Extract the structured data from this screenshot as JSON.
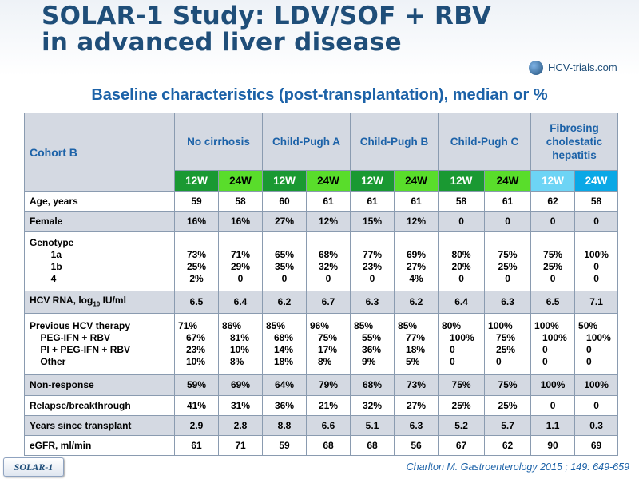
{
  "slide": {
    "title_line1": "SOLAR-1 Study: LDV/SOF + RBV",
    "title_line2": "in advanced liver disease",
    "logo_text": "HCV-trials.com",
    "subtitle": "Baseline characteristics (post-transplantation), median or %",
    "badge": "SOLAR-1",
    "citation": "Charlton M. Gastroenterology 2015 ; 149: 649-659"
  },
  "table": {
    "cohort_label": "Cohort B",
    "groups": [
      "No cirrhosis",
      "Child-Pugh  A",
      "Child-Pugh  B",
      "Child-Pugh  C",
      "Fibrosing\ncholestatic\nhepatitis"
    ],
    "weeks": [
      "12W",
      "24W",
      "12W",
      "24W",
      "12W",
      "24W",
      "12W",
      "24W",
      "12W",
      "24W"
    ],
    "rows": [
      {
        "label": "Age, years",
        "values": [
          "59",
          "58",
          "60",
          "61",
          "61",
          "61",
          "58",
          "61",
          "62",
          "58"
        ]
      },
      {
        "label": "Female",
        "values": [
          "16%",
          "16%",
          "27%",
          "12%",
          "15%",
          "12%",
          "0",
          "0",
          "0",
          "0"
        ]
      },
      {
        "label": "Genotype\n        1a\n        1b\n        4",
        "values": [
          "\n73%\n25%\n2%",
          "\n71%\n29%\n0",
          "\n65%\n35%\n0",
          "\n68%\n32%\n0",
          "\n77%\n23%\n0",
          "\n69%\n27%\n4%",
          "\n80%\n20%\n0",
          "\n75%\n25%\n0",
          "\n75%\n25%\n0",
          "\n100%\n0\n0"
        ]
      },
      {
        "label": "HCV RNA, log",
        "label_sub": "10",
        "label_suffix": " IU/ml",
        "values": [
          "6.5",
          "6.4",
          "6.2",
          "6.7",
          "6.3",
          "6.2",
          "6.4",
          "6.3",
          "6.5",
          "7.1"
        ]
      },
      {
        "label": "Previous HCV therapy\n    PEG-IFN + RBV\n    PI + PEG-IFN + RBV\n    Other",
        "values": [
          "71%\n   67%\n   23%\n   10%",
          "86%\n   81%\n   10%\n   8%",
          "85%\n   68%\n   14%\n   18%",
          "96%\n   75%\n   17%\n   8%",
          "85%\n   55%\n   36%\n   9%",
          "85%\n   77%\n   18%\n   5%",
          "80%\n   100%\n   0\n   0",
          "100%\n   75%\n   25%\n   0",
          "100%\n   100%\n   0\n   0",
          "50%\n   100%\n   0\n   0"
        ]
      },
      {
        "label": "Non-response",
        "values": [
          "59%",
          "69%",
          "64%",
          "79%",
          "68%",
          "73%",
          "75%",
          "75%",
          "100%",
          "100%"
        ]
      },
      {
        "label": "Relapse/breakthrough",
        "values": [
          "41%",
          "31%",
          "36%",
          "21%",
          "32%",
          "27%",
          "25%",
          "25%",
          "0",
          "0"
        ]
      },
      {
        "label": "Years since transplant",
        "values": [
          "2.9",
          "2.8",
          "8.8",
          "6.6",
          "5.1",
          "6.3",
          "5.2",
          "5.7",
          "1.1",
          "0.3"
        ]
      },
      {
        "label": "eGFR, ml/min",
        "values": [
          "61",
          "71",
          "59",
          "68",
          "68",
          "56",
          "67",
          "62",
          "90",
          "69"
        ]
      }
    ]
  },
  "colors": {
    "title": "#1f4e79",
    "subtitle": "#1c62a8",
    "row_shade": "#d4d9e2",
    "week_12_dark_green": "#1a9932",
    "week_24_light_green": "#59dd2b",
    "week_12_light_blue": "#6dd4f5",
    "week_24_blue": "#0aa8e6"
  }
}
